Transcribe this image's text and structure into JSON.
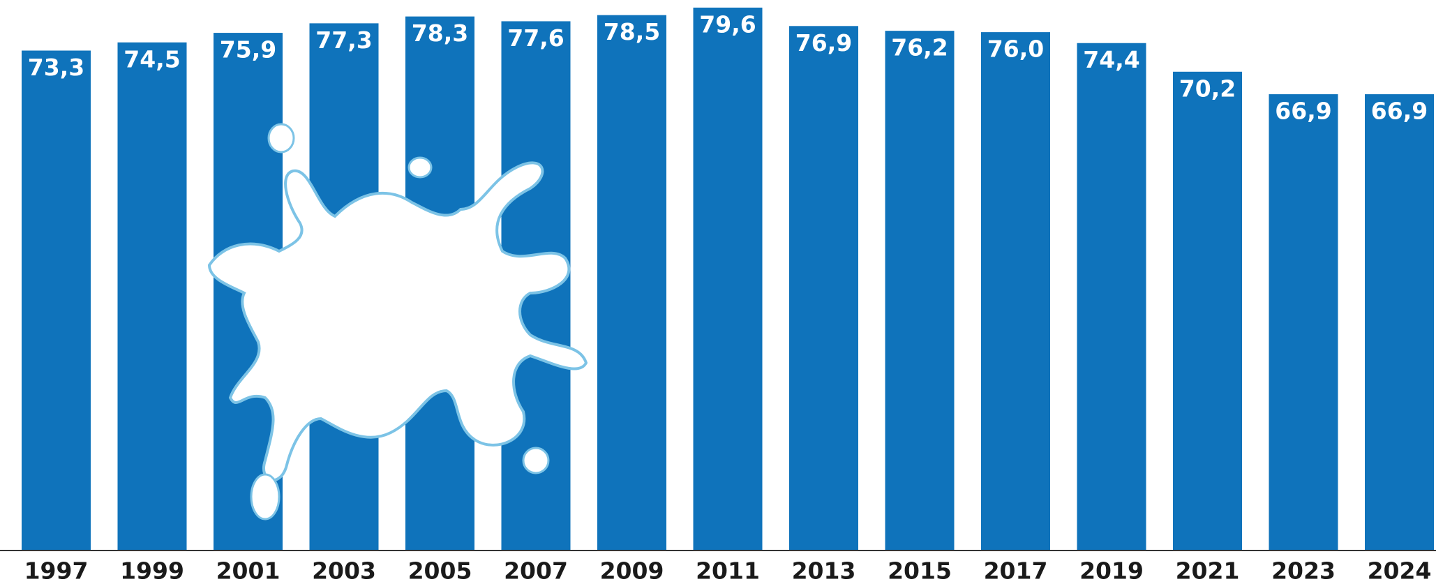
{
  "chart_data": {
    "type": "bar",
    "categories": [
      "1997",
      "1999",
      "2001",
      "2003",
      "2005",
      "2007",
      "2009",
      "2011",
      "2013",
      "2015",
      "2017",
      "2019",
      "2021",
      "2023",
      "2024"
    ],
    "values": [
      73.3,
      74.5,
      75.9,
      77.3,
      78.3,
      77.6,
      78.5,
      79.6,
      76.9,
      76.2,
      76.0,
      74.4,
      70.2,
      66.9,
      66.9
    ],
    "value_labels": [
      "73,3",
      "74,5",
      "75,9",
      "77,3",
      "78,3",
      "77,6",
      "78,5",
      "79,6",
      "76,9",
      "76,2",
      "76,0",
      "74,4",
      "70,2",
      "66,9",
      "66,9"
    ],
    "color": "#0f73bb",
    "ylim": [
      0,
      80
    ]
  }
}
